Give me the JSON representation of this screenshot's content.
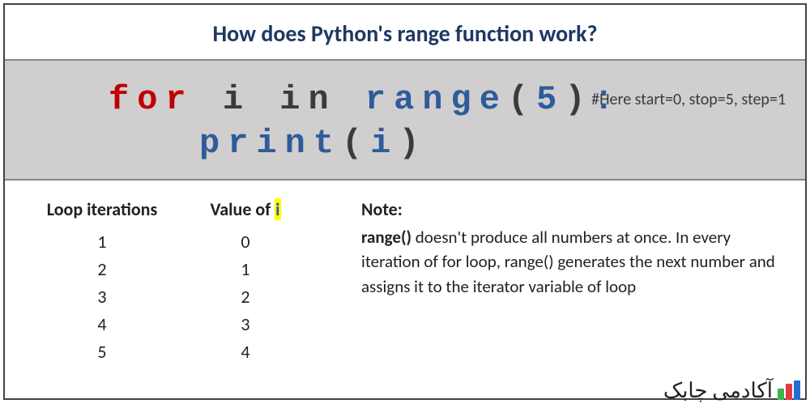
{
  "title": "How does Python's range function work?",
  "code": {
    "line1": {
      "for": "for",
      "i": "i",
      "in": "in",
      "range": "range",
      "lparen": "(",
      "arg": "5",
      "rparen": ")",
      "colon": ":"
    },
    "line2": {
      "print": "print",
      "lparen": "(",
      "arg": "i",
      "rparen": ")"
    },
    "comment": "#Here start=0, stop=5, step=1"
  },
  "table": {
    "iter_header": "Loop iterations",
    "val_header_prefix": "Value of ",
    "val_header_i": "i",
    "rows": [
      {
        "iter": "1",
        "val": "0"
      },
      {
        "iter": "2",
        "val": "1"
      },
      {
        "iter": "3",
        "val": "2"
      },
      {
        "iter": "4",
        "val": "3"
      },
      {
        "iter": "5",
        "val": "4"
      }
    ]
  },
  "note": {
    "title": "Note:",
    "range_kw": "range()",
    "body_1": " doesn't produce all numbers at once. In every iteration of for loop, range() generates the next number and assigns it to the iterator variable of loop"
  },
  "watermark": "آکادمی چابک",
  "colors": {
    "title_text": "#1f3864",
    "code_bg": "#d0cece",
    "kw_red": "#c00000",
    "kw_dark": "#3b3b3b",
    "kw_blue": "#2e5c9a",
    "highlight": "#ffff00",
    "border": "#444444",
    "text": "#222222"
  },
  "fonts": {
    "title_size": 28,
    "code_size": 42,
    "comment_size": 20,
    "body_size": 21,
    "header_size": 22
  }
}
